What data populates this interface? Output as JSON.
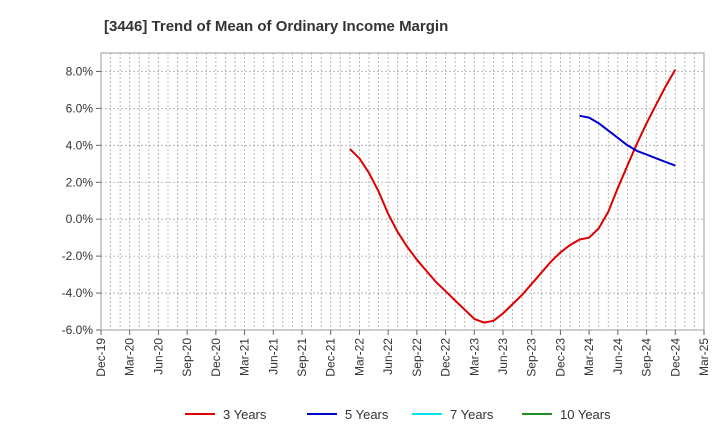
{
  "chart_data": {
    "type": "line",
    "title": "[3446]  Trend of Mean of Ordinary Income Margin",
    "xlabel": "",
    "ylabel": "",
    "x_ticks": [
      "Dec-19",
      "Mar-20",
      "Jun-20",
      "Sep-20",
      "Dec-20",
      "Mar-21",
      "Jun-21",
      "Sep-21",
      "Dec-21",
      "Mar-22",
      "Jun-22",
      "Sep-22",
      "Dec-22",
      "Mar-23",
      "Jun-23",
      "Sep-23",
      "Dec-23",
      "Mar-24",
      "Jun-24",
      "Sep-24",
      "Dec-24",
      "Mar-25"
    ],
    "y_ticks": [
      "8.0%",
      "6.0%",
      "4.0%",
      "2.0%",
      "0.0%",
      "-2.0%",
      "-4.0%",
      "-6.0%"
    ],
    "y_tick_values": [
      8,
      6,
      4,
      2,
      0,
      -2,
      -4,
      -6
    ],
    "ylim": [
      -6,
      9
    ],
    "grid": true,
    "legend_position": "bottom",
    "series": [
      {
        "name": "3 Years",
        "color": "#dd0000",
        "points": [
          [
            "Feb-22",
            3.8
          ],
          [
            "Mar-22",
            3.3
          ],
          [
            "Apr-22",
            2.5
          ],
          [
            "May-22",
            1.5
          ],
          [
            "Jun-22",
            0.3
          ],
          [
            "Jul-22",
            -0.7
          ],
          [
            "Aug-22",
            -1.5
          ],
          [
            "Sep-22",
            -2.2
          ],
          [
            "Oct-22",
            -2.8
          ],
          [
            "Nov-22",
            -3.4
          ],
          [
            "Dec-22",
            -3.9
          ],
          [
            "Jan-23",
            -4.4
          ],
          [
            "Feb-23",
            -4.9
          ],
          [
            "Mar-23",
            -5.4
          ],
          [
            "Apr-23",
            -5.6
          ],
          [
            "May-23",
            -5.5
          ],
          [
            "Jun-23",
            -5.1
          ],
          [
            "Jul-23",
            -4.6
          ],
          [
            "Aug-23",
            -4.1
          ],
          [
            "Sep-23",
            -3.5
          ],
          [
            "Oct-23",
            -2.9
          ],
          [
            "Nov-23",
            -2.3
          ],
          [
            "Dec-23",
            -1.8
          ],
          [
            "Jan-24",
            -1.4
          ],
          [
            "Feb-24",
            -1.1
          ],
          [
            "Mar-24",
            -1.0
          ],
          [
            "Apr-24",
            -0.5
          ],
          [
            "May-24",
            0.4
          ],
          [
            "Jun-24",
            1.7
          ],
          [
            "Jul-24",
            2.9
          ],
          [
            "Aug-24",
            4.1
          ],
          [
            "Sep-24",
            5.2
          ],
          [
            "Oct-24",
            6.2
          ],
          [
            "Nov-24",
            7.2
          ],
          [
            "Dec-24",
            8.1
          ]
        ]
      },
      {
        "name": "5 Years",
        "color": "#0000cc",
        "points": [
          [
            "Feb-24",
            5.6
          ],
          [
            "Mar-24",
            5.5
          ],
          [
            "Apr-24",
            5.2
          ],
          [
            "May-24",
            4.8
          ],
          [
            "Jun-24",
            4.4
          ],
          [
            "Jul-24",
            4.0
          ],
          [
            "Aug-24",
            3.7
          ],
          [
            "Sep-24",
            3.5
          ],
          [
            "Oct-24",
            3.3
          ],
          [
            "Nov-24",
            3.1
          ],
          [
            "Dec-24",
            2.9
          ]
        ]
      },
      {
        "name": "7 Years",
        "color": "#00e5ee",
        "points": []
      },
      {
        "name": "10 Years",
        "color": "#228b22",
        "points": []
      }
    ]
  }
}
